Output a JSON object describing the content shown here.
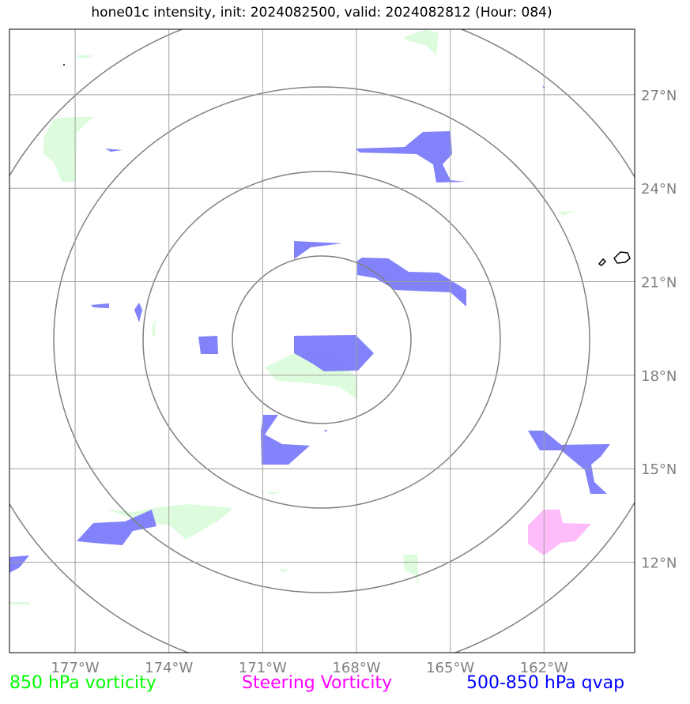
{
  "title": "hone01c intensity, init: 2024082500, valid: 2024082812 (Hour: 084)",
  "map": {
    "lon_ticks": [
      "177°W",
      "174°W",
      "171°W",
      "168°W",
      "165°W",
      "162°W"
    ],
    "lat_ticks": [
      "27°N",
      "24°N",
      "21°N",
      "18°N",
      "15°N",
      "12°N"
    ],
    "lon_values": [
      -177,
      -174,
      -171,
      -168,
      -165,
      -162
    ],
    "lat_values": [
      27,
      24,
      21,
      18,
      15,
      12
    ],
    "extent": {
      "lon_min": -179.1,
      "lon_max": -159.1,
      "lat_min": 9.1,
      "lat_max": 29.1
    },
    "range_rings_count": 4
  },
  "legend": {
    "vort850": {
      "label": "850 hPa vorticity",
      "color": "#00ff00"
    },
    "steering": {
      "label": "Steering Vorticity",
      "color": "#ff00ff"
    },
    "qvap": {
      "label": "500-850 hPa qvap",
      "color": "#0000ff"
    }
  },
  "colors": {
    "green_fill": "#ddfcdd",
    "blue_fill": "#7b7bfa",
    "magenta_fill": "#ffbcfb",
    "grid": "#a0a0a0",
    "ring": "#808080"
  }
}
